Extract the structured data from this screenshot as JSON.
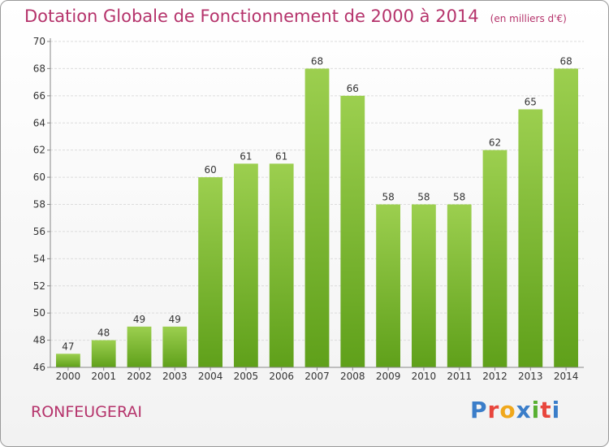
{
  "header": {
    "title": "Dotation Globale de Fonctionnement de 2000 à 2014",
    "subtitle": "(en milliers d'€)"
  },
  "footer": {
    "commune": "RONFEUGERAI",
    "logo_text": "Proxiti",
    "logo_colors": [
      "#3a7dc9",
      "#e8453c",
      "#f0a81c",
      "#3a7dc9",
      "#58b031",
      "#e8453c",
      "#3a7dc9"
    ]
  },
  "chart_data": {
    "type": "bar",
    "categories": [
      "2000",
      "2001",
      "2002",
      "2003",
      "2004",
      "2005",
      "2006",
      "2007",
      "2008",
      "2009",
      "2010",
      "2011",
      "2012",
      "2013",
      "2014"
    ],
    "values": [
      47,
      48,
      49,
      49,
      60,
      61,
      61,
      68,
      66,
      58,
      58,
      58,
      62,
      65,
      68
    ],
    "ylim": [
      46,
      70
    ],
    "yticks": [
      46,
      48,
      50,
      52,
      54,
      56,
      58,
      60,
      62,
      64,
      66,
      68,
      70
    ],
    "grid": true,
    "bar_color_top": "#9ccf4f",
    "bar_color_bottom": "#5fa01a"
  }
}
